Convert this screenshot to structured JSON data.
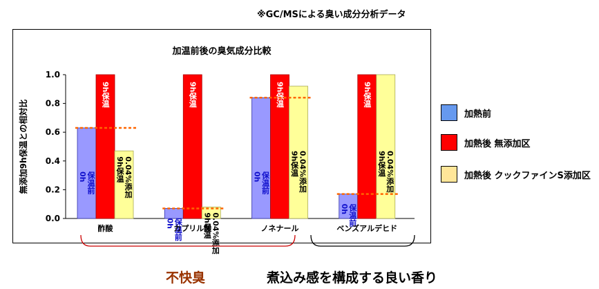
{
  "header_note": "※GC/MSによる臭い成分分析データ",
  "chart_data": {
    "type": "bar",
    "title": "加温前後の臭気成分比較",
    "ylabel": "無添加9h保温との相対比",
    "ylim": [
      0,
      1.0
    ],
    "yticks": [
      "0.0",
      "0.2",
      "0.4",
      "0.6",
      "0.8",
      "1.0"
    ],
    "grid": false,
    "legend_position": "right",
    "categories": [
      "酢酸",
      "カプリル酸",
      "ノネナール",
      "ベンズアルデヒド"
    ],
    "series": [
      {
        "name": "加熱前",
        "color": "#9999ff",
        "values": [
          0.63,
          0.07,
          0.84,
          0.17
        ],
        "bar_label": "0h 保温前"
      },
      {
        "name": "加熱後 無添加区",
        "color": "#ff0000",
        "values": [
          1.0,
          1.0,
          1.0,
          1.0
        ],
        "bar_label": "9h保温"
      },
      {
        "name": "加熱後 クックファインS添加区",
        "color": "#ffff99",
        "values": [
          0.47,
          0.08,
          0.92,
          1.0
        ],
        "bar_label": "9h保温 0.04%添加"
      }
    ],
    "reference_lines": [
      0.63,
      0.07,
      0.84,
      0.17
    ],
    "reference_color": "#ff6600"
  },
  "groups": [
    {
      "label": "不快臭",
      "color": "#993300",
      "bracket_color": "#cc0000"
    },
    {
      "label": "煮込み感を構成する良い香り",
      "color": "#000000",
      "bracket_color": "#000000"
    }
  ]
}
